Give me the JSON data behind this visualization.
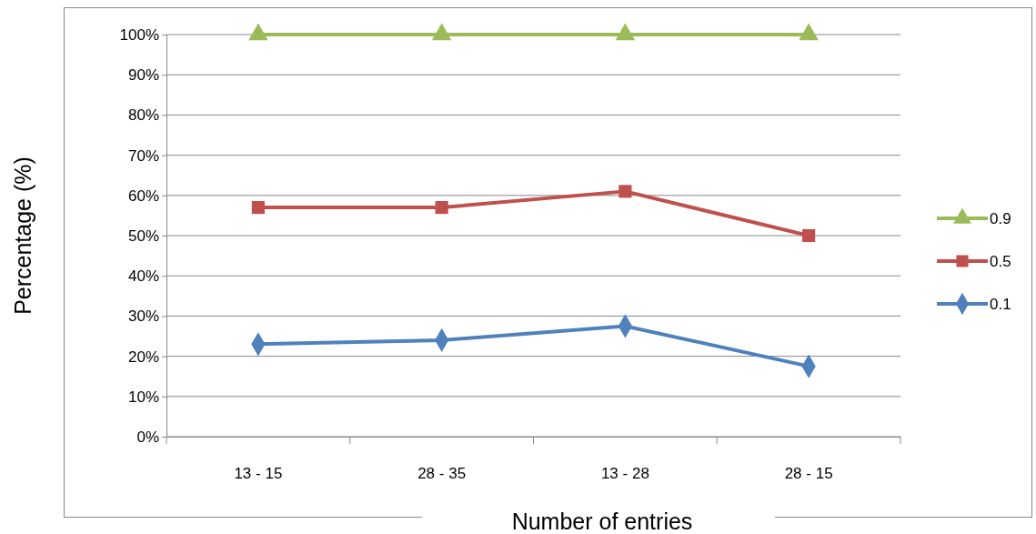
{
  "chart_data": {
    "type": "line",
    "xlabel": "Number of entries",
    "ylabel": "Percentage (%)",
    "categories": [
      "13 - 15",
      "28 - 35",
      "13 - 28",
      "28 - 15"
    ],
    "series": [
      {
        "name": "0.9",
        "color": "#9bbb59",
        "marker": "triangle",
        "values": [
          100,
          100,
          100,
          100
        ]
      },
      {
        "name": "0.5",
        "color": "#c0504d",
        "marker": "square",
        "values": [
          57,
          57,
          61,
          50
        ]
      },
      {
        "name": "0.1",
        "color": "#4f81bd",
        "marker": "diamond",
        "values": [
          23,
          24,
          27.5,
          17.5
        ]
      }
    ],
    "ylim": [
      0,
      100
    ],
    "yticks": [
      {
        "value": 0,
        "label": "0%"
      },
      {
        "value": 10,
        "label": "10%"
      },
      {
        "value": 20,
        "label": "20%"
      },
      {
        "value": 30,
        "label": "30%"
      },
      {
        "value": 40,
        "label": "40%"
      },
      {
        "value": 50,
        "label": "50%"
      },
      {
        "value": 60,
        "label": "60%"
      },
      {
        "value": 70,
        "label": "70%"
      },
      {
        "value": 80,
        "label": "80%"
      },
      {
        "value": 90,
        "label": "90%"
      },
      {
        "value": 100,
        "label": "100%"
      }
    ],
    "grid": "y",
    "legend": "right",
    "line_style": "solid"
  }
}
